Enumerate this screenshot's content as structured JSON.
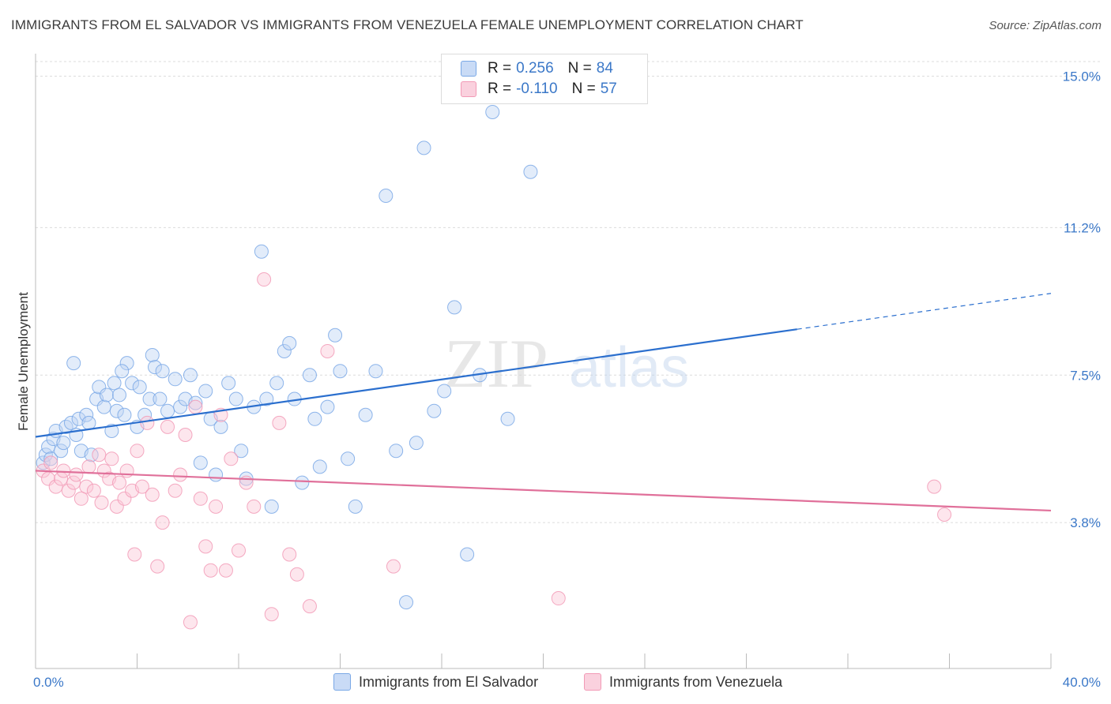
{
  "header": {
    "title": "IMMIGRANTS FROM EL SALVADOR VS IMMIGRANTS FROM VENEZUELA FEMALE UNEMPLOYMENT CORRELATION CHART",
    "source": "Source: ZipAtlas.com"
  },
  "watermark": {
    "zip": "ZIP",
    "atlas": "atlas"
  },
  "legend": {
    "rows": [
      {
        "r_label": "R =",
        "r_value": "0.256",
        "n_label": "N =",
        "n_value": "84",
        "color": "#a9c6ef"
      },
      {
        "r_label": "R =",
        "r_value": "-0.110",
        "n_label": "N =",
        "n_value": "57",
        "color": "#f7b6c9"
      }
    ]
  },
  "bottom_legend": {
    "items": [
      {
        "label": "Immigrants from El Salvador",
        "color": "#a9c6ef"
      },
      {
        "label": "Immigrants from Venezuela",
        "color": "#f7b6c9"
      }
    ]
  },
  "chart_data": {
    "type": "scatter",
    "title": "IMMIGRANTS FROM EL SALVADOR VS IMMIGRANTS FROM VENEZUELA FEMALE UNEMPLOYMENT CORRELATION CHART",
    "xlabel": "",
    "ylabel": "Female Unemployment",
    "xlim": [
      0,
      40
    ],
    "ylim": [
      0,
      15.75
    ],
    "x_tick_labels": [
      "0.0%",
      "40.0%"
    ],
    "y_ticks": [
      3.8,
      7.5,
      11.2,
      15.0
    ],
    "y_tick_labels": [
      "3.8%",
      "7.5%",
      "11.2%",
      "15.0%"
    ],
    "grid": true,
    "legend_position": "top-center",
    "series": [
      {
        "name": "Immigrants from El Salvador",
        "color": "#7aa8e6",
        "trend": {
          "x": [
            0,
            30.0
          ],
          "y": [
            5.95,
            8.65
          ],
          "dashed_extension_to_x": 40,
          "dashed_end_y": 9.55,
          "color": "#2b6fce"
        },
        "points": [
          [
            0.3,
            5.3
          ],
          [
            0.4,
            5.5
          ],
          [
            0.5,
            5.7
          ],
          [
            0.6,
            5.4
          ],
          [
            0.7,
            5.9
          ],
          [
            0.8,
            6.1
          ],
          [
            1.0,
            5.6
          ],
          [
            1.1,
            5.8
          ],
          [
            1.2,
            6.2
          ],
          [
            1.4,
            6.3
          ],
          [
            1.6,
            6.0
          ],
          [
            1.7,
            6.4
          ],
          [
            1.8,
            5.6
          ],
          [
            2.0,
            6.5
          ],
          [
            2.1,
            6.3
          ],
          [
            2.2,
            5.5
          ],
          [
            2.4,
            6.9
          ],
          [
            2.5,
            7.2
          ],
          [
            2.7,
            6.7
          ],
          [
            2.8,
            7.0
          ],
          [
            3.0,
            6.1
          ],
          [
            3.1,
            7.3
          ],
          [
            3.2,
            6.6
          ],
          [
            3.3,
            7.0
          ],
          [
            3.5,
            6.5
          ],
          [
            3.6,
            7.8
          ],
          [
            3.8,
            7.3
          ],
          [
            4.0,
            6.2
          ],
          [
            4.1,
            7.2
          ],
          [
            4.3,
            6.5
          ],
          [
            4.5,
            6.9
          ],
          [
            4.6,
            8.0
          ],
          [
            4.7,
            7.7
          ],
          [
            4.9,
            6.9
          ],
          [
            5.0,
            7.6
          ],
          [
            5.2,
            6.6
          ],
          [
            5.5,
            7.4
          ],
          [
            5.7,
            6.7
          ],
          [
            5.9,
            6.9
          ],
          [
            6.1,
            7.5
          ],
          [
            6.3,
            6.8
          ],
          [
            6.5,
            5.3
          ],
          [
            6.7,
            7.1
          ],
          [
            6.9,
            6.4
          ],
          [
            7.1,
            5.0
          ],
          [
            7.3,
            6.2
          ],
          [
            7.6,
            7.3
          ],
          [
            7.9,
            6.9
          ],
          [
            8.1,
            5.6
          ],
          [
            8.3,
            4.9
          ],
          [
            8.6,
            6.7
          ],
          [
            8.9,
            10.6
          ],
          [
            9.1,
            6.9
          ],
          [
            9.3,
            4.2
          ],
          [
            9.5,
            7.3
          ],
          [
            9.8,
            8.1
          ],
          [
            10.0,
            8.3
          ],
          [
            10.2,
            6.9
          ],
          [
            10.5,
            4.8
          ],
          [
            10.8,
            7.5
          ],
          [
            11.0,
            6.4
          ],
          [
            11.2,
            5.2
          ],
          [
            11.5,
            6.7
          ],
          [
            11.8,
            8.5
          ],
          [
            12.0,
            7.6
          ],
          [
            12.3,
            5.4
          ],
          [
            12.6,
            4.2
          ],
          [
            13.0,
            6.5
          ],
          [
            13.4,
            7.6
          ],
          [
            13.8,
            12.0
          ],
          [
            14.2,
            5.6
          ],
          [
            14.6,
            1.8
          ],
          [
            15.0,
            5.8
          ],
          [
            15.3,
            13.2
          ],
          [
            15.7,
            6.6
          ],
          [
            16.1,
            7.1
          ],
          [
            16.5,
            9.2
          ],
          [
            17.0,
            3.0
          ],
          [
            17.5,
            7.5
          ],
          [
            18.0,
            14.1
          ],
          [
            18.6,
            6.4
          ],
          [
            19.5,
            12.6
          ],
          [
            1.5,
            7.8
          ],
          [
            3.4,
            7.6
          ]
        ]
      },
      {
        "name": "Immigrants from Venezuela",
        "color": "#f29ab6",
        "trend": {
          "x": [
            0,
            40
          ],
          "y": [
            5.1,
            4.1
          ],
          "color": "#e0709a"
        },
        "points": [
          [
            0.3,
            5.1
          ],
          [
            0.5,
            4.9
          ],
          [
            0.6,
            5.3
          ],
          [
            0.8,
            4.7
          ],
          [
            1.0,
            4.9
          ],
          [
            1.1,
            5.1
          ],
          [
            1.3,
            4.6
          ],
          [
            1.5,
            4.8
          ],
          [
            1.6,
            5.0
          ],
          [
            1.8,
            4.4
          ],
          [
            2.0,
            4.7
          ],
          [
            2.1,
            5.2
          ],
          [
            2.3,
            4.6
          ],
          [
            2.5,
            5.5
          ],
          [
            2.6,
            4.3
          ],
          [
            2.7,
            5.1
          ],
          [
            2.9,
            4.9
          ],
          [
            3.0,
            5.4
          ],
          [
            3.2,
            4.2
          ],
          [
            3.3,
            4.8
          ],
          [
            3.5,
            4.4
          ],
          [
            3.6,
            5.1
          ],
          [
            3.8,
            4.6
          ],
          [
            3.9,
            3.0
          ],
          [
            4.0,
            5.6
          ],
          [
            4.2,
            4.7
          ],
          [
            4.4,
            6.3
          ],
          [
            4.6,
            4.5
          ],
          [
            4.8,
            2.7
          ],
          [
            5.0,
            3.8
          ],
          [
            5.2,
            6.2
          ],
          [
            5.5,
            4.6
          ],
          [
            5.7,
            5.0
          ],
          [
            5.9,
            6.0
          ],
          [
            6.1,
            1.3
          ],
          [
            6.3,
            6.7
          ],
          [
            6.5,
            4.4
          ],
          [
            6.7,
            3.2
          ],
          [
            6.9,
            2.6
          ],
          [
            7.1,
            4.2
          ],
          [
            7.3,
            6.5
          ],
          [
            7.5,
            2.6
          ],
          [
            7.7,
            5.4
          ],
          [
            8.0,
            3.1
          ],
          [
            8.3,
            4.8
          ],
          [
            8.6,
            4.2
          ],
          [
            9.0,
            9.9
          ],
          [
            9.3,
            1.5
          ],
          [
            9.6,
            6.3
          ],
          [
            10.0,
            3.0
          ],
          [
            10.3,
            2.5
          ],
          [
            10.8,
            1.7
          ],
          [
            11.5,
            8.1
          ],
          [
            14.1,
            2.7
          ],
          [
            20.6,
            1.9
          ],
          [
            35.4,
            4.7
          ],
          [
            35.8,
            4.0
          ]
        ]
      }
    ]
  }
}
